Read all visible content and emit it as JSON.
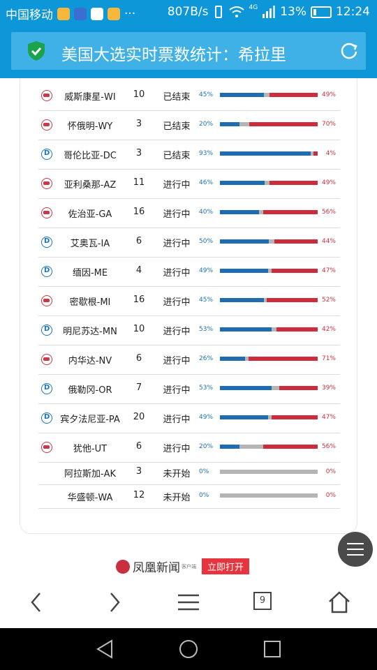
{
  "statusbar": {
    "carrier": "中国移动",
    "dots": "···",
    "speed": "807B/s",
    "network": "4G",
    "battery": "13%",
    "time": "12:24"
  },
  "header": {
    "title": "美国大选实时票数统计：希拉里"
  },
  "colors": {
    "accent": "#0d97d9",
    "democrat": "#1e6db3",
    "republican": "#cc2d3c",
    "undecided": "#b5b5b5"
  },
  "rows": [
    {
      "party": "R",
      "state": "威斯康星-WI",
      "votes": "10",
      "status": "已结束",
      "dem_pct": "45%",
      "rep_pct": "49%",
      "dem": 45,
      "rep": 49
    },
    {
      "party": "R",
      "state": "怀俄明-WY",
      "votes": "3",
      "status": "已结束",
      "dem_pct": "20%",
      "rep_pct": "70%",
      "dem": 20,
      "rep": 70
    },
    {
      "party": "D",
      "state": "哥伦比亚-DC",
      "votes": "3",
      "status": "已结束",
      "dem_pct": "93%",
      "rep_pct": "4%",
      "dem": 93,
      "rep": 4
    },
    {
      "party": "R",
      "state": "亚利桑那-AZ",
      "votes": "11",
      "status": "进行中",
      "dem_pct": "46%",
      "rep_pct": "49%",
      "dem": 46,
      "rep": 49
    },
    {
      "party": "R",
      "state": "佐治亚-GA",
      "votes": "16",
      "status": "进行中",
      "dem_pct": "40%",
      "rep_pct": "56%",
      "dem": 40,
      "rep": 56
    },
    {
      "party": "D",
      "state": "艾奥瓦-IA",
      "votes": "6",
      "status": "进行中",
      "dem_pct": "50%",
      "rep_pct": "44%",
      "dem": 50,
      "rep": 44
    },
    {
      "party": "D",
      "state": "缅因-ME",
      "votes": "4",
      "status": "进行中",
      "dem_pct": "49%",
      "rep_pct": "47%",
      "dem": 49,
      "rep": 47
    },
    {
      "party": "R",
      "state": "密歇根-MI",
      "votes": "16",
      "status": "进行中",
      "dem_pct": "45%",
      "rep_pct": "52%",
      "dem": 45,
      "rep": 52
    },
    {
      "party": "D",
      "state": "明尼苏达-MN",
      "votes": "10",
      "status": "进行中",
      "dem_pct": "53%",
      "rep_pct": "42%",
      "dem": 53,
      "rep": 42
    },
    {
      "party": "R",
      "state": "内华达-NV",
      "votes": "6",
      "status": "进行中",
      "dem_pct": "26%",
      "rep_pct": "71%",
      "dem": 26,
      "rep": 71
    },
    {
      "party": "D",
      "state": "俄勒冈-OR",
      "votes": "7",
      "status": "进行中",
      "dem_pct": "53%",
      "rep_pct": "39%",
      "dem": 53,
      "rep": 39
    },
    {
      "party": "D",
      "state": "宾夕法尼亚-PA",
      "votes": "20",
      "status": "进行中",
      "dem_pct": "49%",
      "rep_pct": "47%",
      "dem": 49,
      "rep": 47
    },
    {
      "party": "R",
      "state": "犹他-UT",
      "votes": "6",
      "status": "进行中",
      "dem_pct": "20%",
      "rep_pct": "56%",
      "dem": 20,
      "rep": 56
    },
    {
      "party": "",
      "state": "阿拉斯加-AK",
      "votes": "3",
      "status": "未开始",
      "dem_pct": "0%",
      "rep_pct": "0%",
      "dem": 0,
      "rep": 0
    },
    {
      "party": "",
      "state": "华盛顿-WA",
      "votes": "12",
      "status": "未开始",
      "dem_pct": "0%",
      "rep_pct": "0%",
      "dem": 0,
      "rep": 0
    }
  ],
  "promo": {
    "brand": "凤凰新闻",
    "sub": "客户端",
    "open": "立即打开"
  },
  "browser": {
    "tabs": "9"
  },
  "icons": [
    "shield-check-icon",
    "refresh-icon",
    "menu-icon",
    "back-icon",
    "forward-icon",
    "tabs-icon",
    "home-icon"
  ]
}
